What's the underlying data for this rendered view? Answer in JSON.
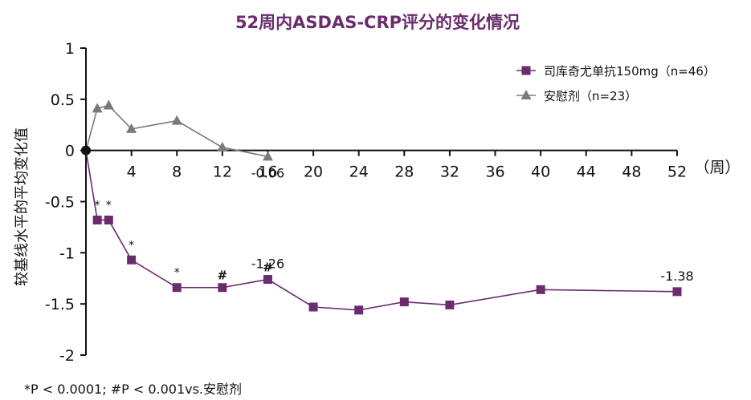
{
  "chart_data": {
    "type": "line",
    "title": "52周内ASDAS-CRP评分的变化情况",
    "ylabel": "较基线水平的平均变化值",
    "x_unit": "（周）",
    "x_ticks": [
      4,
      8,
      12,
      16,
      20,
      24,
      28,
      32,
      36,
      40,
      44,
      48,
      52
    ],
    "y_ticks": [
      "1",
      "0.5",
      "0",
      "-0.5",
      "-1",
      "-1.5",
      "-2"
    ],
    "ylim": [
      -2,
      1
    ],
    "xlim": [
      0,
      52
    ],
    "legend_position": "top-right",
    "series": [
      {
        "name": "司库奇尤单抗150mg（n=46）",
        "color": "#6b2c6e",
        "marker": "square",
        "x": [
          0,
          1,
          2,
          4,
          8,
          12,
          16,
          20,
          24,
          28,
          32,
          40,
          52
        ],
        "y": [
          0,
          -0.68,
          -0.68,
          -1.07,
          -1.34,
          -1.34,
          -1.26,
          -1.53,
          -1.56,
          -1.48,
          -1.51,
          -1.36,
          -1.38
        ]
      },
      {
        "name": "安慰剂（n=23）",
        "color": "#7a7a7a",
        "marker": "triangle",
        "x": [
          0,
          1,
          2,
          4,
          8,
          12,
          16
        ],
        "y": [
          0,
          0.41,
          0.44,
          0.21,
          0.29,
          0.03,
          -0.06
        ]
      }
    ],
    "annotations": [
      {
        "text": "-0.06",
        "x": 16,
        "y": -0.06,
        "anchor": "below"
      },
      {
        "text": "-1.26",
        "x": 16,
        "y": -1.26,
        "anchor": "above"
      },
      {
        "text": "-1.38",
        "x": 52,
        "y": -1.38,
        "anchor": "above"
      }
    ],
    "significance_marks": [
      {
        "text": "*",
        "x": 1,
        "y": -0.68
      },
      {
        "text": "*",
        "x": 2,
        "y": -0.68
      },
      {
        "text": "*",
        "x": 4,
        "y": -1.07
      },
      {
        "text": "*",
        "x": 8,
        "y": -1.34
      },
      {
        "text": "#",
        "x": 12,
        "y": -1.34
      },
      {
        "text": "#",
        "x": 16,
        "y": -1.26
      }
    ],
    "footnote": "*P < 0.0001; #P < 0.001vs.安慰剂"
  }
}
